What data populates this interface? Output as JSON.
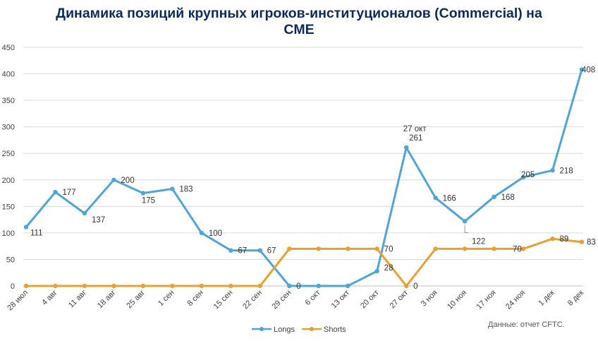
{
  "title_line1": "Динамика позиций крупных игроков-институционалов (Commercial) на",
  "title_line2": "CME",
  "source_note": "Данные: отчет CFTC.",
  "colors": {
    "longs": "#4ea6d6",
    "shorts": "#e8a033",
    "grid": "#d9d9d9",
    "title": "#0e2a5c"
  },
  "chart_data": {
    "type": "line",
    "title": "Динамика позиций крупных игроков-институционалов (Commercial) на CME",
    "categories": [
      "28 июл",
      "4 авг",
      "11 авг",
      "18 авг",
      "25 авг",
      "1 сен",
      "8 сен",
      "15 сен",
      "22 сен",
      "29 сен",
      "6 окт",
      "13 окт",
      "20 окт",
      "27 окт",
      "3 ноя",
      "10 ноя",
      "17 ноя",
      "24 ноя",
      "1 дек",
      "8 дек"
    ],
    "yticks": [
      "0",
      "50",
      "100",
      "150",
      "200",
      "250",
      "300",
      "350",
      "400",
      "450"
    ],
    "ylim": [
      0,
      450
    ],
    "grid": true,
    "legend_position": "bottom",
    "series": [
      {
        "name": "Longs",
        "values": [
          111,
          177,
          137,
          200,
          175,
          183,
          100,
          67,
          67,
          0,
          0,
          0,
          28,
          261,
          166,
          122,
          168,
          205,
          218,
          408
        ],
        "labels": [
          "111",
          "177",
          "137",
          "200",
          "175",
          "183",
          "100",
          "67",
          "67",
          "0",
          "",
          "",
          "28",
          "261",
          "166",
          "122",
          "168",
          "205",
          "218",
          "408"
        ]
      },
      {
        "name": "Shorts",
        "values": [
          0,
          0,
          0,
          0,
          0,
          0,
          0,
          0,
          0,
          70,
          70,
          70,
          70,
          0,
          70,
          70,
          70,
          70,
          89,
          83
        ],
        "labels": [
          "",
          "",
          "",
          "",
          "",
          "",
          "",
          "",
          "",
          "",
          "",
          "",
          "70",
          "0",
          "",
          "",
          "",
          "70",
          "89",
          "83"
        ]
      }
    ],
    "annotations": [
      {
        "text": "27 окт",
        "category": "27 окт",
        "series": "Longs"
      }
    ]
  }
}
